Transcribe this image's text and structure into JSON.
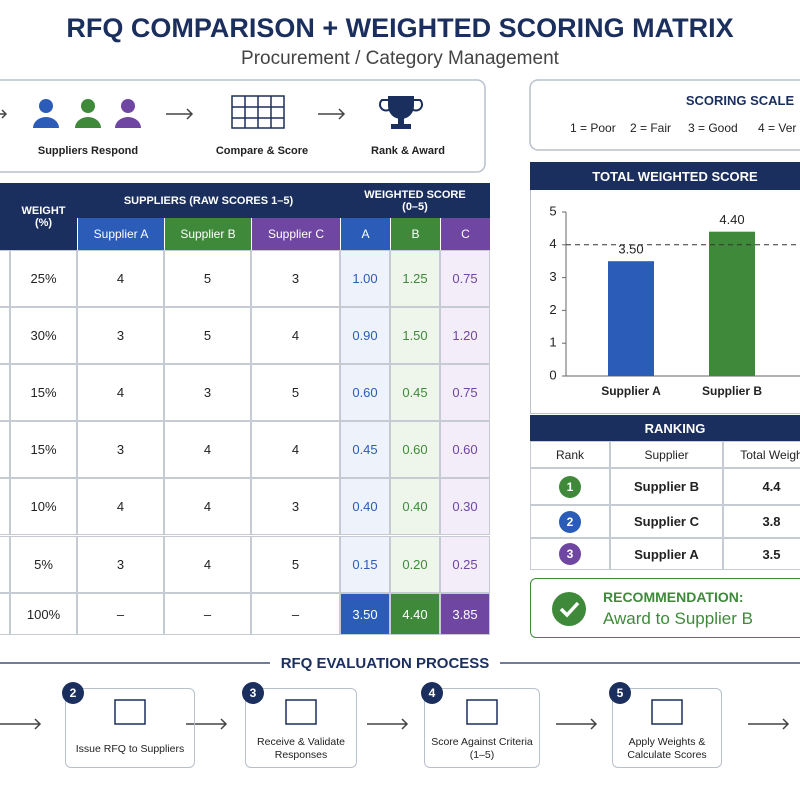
{
  "header": {
    "title": "RFQ COMPARISON + WEIGHTED SCORING MATRIX",
    "subtitle": "Procurement / Category Management"
  },
  "flow": {
    "steps": [
      "Suppliers Respond",
      "Compare & Score",
      "Rank & Award"
    ]
  },
  "scoring_scale": {
    "title": "SCORING SCALE",
    "items": [
      "1 = Poor",
      "2 = Fair",
      "3 = Good",
      "4 = Ver"
    ]
  },
  "table": {
    "weight_header": "WEIGHT (%)",
    "suppliers_header": "SUPPLIERS (RAW SCORES 1–5)",
    "weighted_header": "WEIGHTED SCORE (0–5)",
    "supplier_columns": [
      "Supplier A",
      "Supplier B",
      "Supplier C"
    ],
    "weighted_columns": [
      "A",
      "B",
      "C"
    ],
    "rows": [
      [
        "25%",
        "4",
        "5",
        "3",
        "1.00",
        "1.25",
        "0.75"
      ],
      [
        "30%",
        "3",
        "5",
        "4",
        "0.90",
        "1.50",
        "1.20"
      ],
      [
        "15%",
        "4",
        "3",
        "5",
        "0.60",
        "0.45",
        "0.75"
      ],
      [
        "15%",
        "3",
        "4",
        "4",
        "0.45",
        "0.60",
        "0.60"
      ],
      [
        "10%",
        "4",
        "4",
        "3",
        "0.40",
        "0.40",
        "0.30"
      ],
      [
        "5%",
        "3",
        "4",
        "5",
        "0.15",
        "0.20",
        "0.25"
      ]
    ],
    "total_row": [
      "100%",
      "–",
      "–",
      "–",
      "3.50",
      "4.40",
      "3.85"
    ]
  },
  "chart_data": {
    "type": "bar",
    "title": "TOTAL WEIGHTED SCORE",
    "categories": [
      "Supplier A",
      "Supplier B"
    ],
    "values": [
      3.5,
      4.4
    ],
    "value_labels": [
      "3.50",
      "4.40"
    ],
    "colors": [
      "#2a5cb8",
      "#3f8a3a"
    ],
    "ylim": [
      0,
      5
    ],
    "yticks": [
      0,
      1,
      2,
      3,
      4,
      5
    ],
    "reference_line": 4
  },
  "ranking": {
    "title": "RANKING",
    "columns": [
      "Rank",
      "Supplier",
      "Total Weigh"
    ],
    "rows": [
      [
        "1",
        "Supplier B",
        "4.4"
      ],
      [
        "2",
        "Supplier C",
        "3.8"
      ],
      [
        "3",
        "Supplier A",
        "3.5"
      ]
    ]
  },
  "recommendation": {
    "label": "RECOMMENDATION:",
    "text": "Award to Supplier B"
  },
  "process": {
    "title": "RFQ EVALUATION PROCESS",
    "steps": [
      {
        "number": "2",
        "label": "Issue RFQ to Suppliers"
      },
      {
        "number": "3",
        "label": "Receive & Validate Responses"
      },
      {
        "number": "4",
        "label": "Score Against Criteria (1–5)"
      },
      {
        "number": "5",
        "label": "Apply Weights & Calculate Scores"
      }
    ]
  }
}
